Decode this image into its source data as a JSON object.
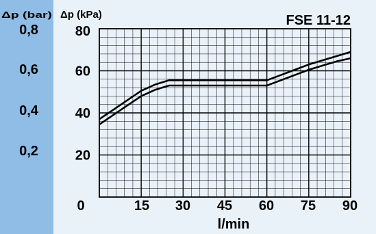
{
  "chart_data": {
    "type": "line",
    "title": "FSE 11-12",
    "xlabel": "l/min",
    "ylabel": "Δp (kPa)",
    "ylabel_secondary": "Δp (bar)",
    "xlim": [
      0,
      90
    ],
    "ylim": [
      0,
      80
    ],
    "x_ticks": [
      "0",
      "15",
      "30",
      "45",
      "60",
      "75",
      "90"
    ],
    "y_ticks": [
      "20",
      "40",
      "60",
      "80"
    ],
    "y2_ticks": [
      "0,2",
      "0,4",
      "0,6",
      "0,8"
    ],
    "grid": true,
    "series": [
      {
        "x": [
          0,
          5,
          10,
          15,
          20,
          25,
          30,
          35,
          40,
          45,
          50,
          55,
          60,
          65,
          70,
          75,
          80,
          85,
          90
        ],
        "y": [
          37,
          41.5,
          46,
          50.5,
          53.5,
          55.5,
          55.5,
          55.5,
          55.5,
          55.5,
          55.5,
          55.5,
          55.5,
          58,
          60.5,
          63,
          65,
          67,
          69
        ]
      },
      {
        "x": [
          0,
          5,
          10,
          15,
          20,
          25,
          30,
          35,
          40,
          45,
          50,
          55,
          60,
          65,
          70,
          75,
          80,
          85,
          90
        ],
        "y": [
          34.5,
          39,
          43.5,
          48,
          51,
          53,
          53,
          53,
          53,
          53,
          53,
          53,
          53,
          55.5,
          58,
          60.5,
          62.5,
          64.5,
          66
        ]
      }
    ]
  },
  "colors": {
    "band": "#8fbde6",
    "background": "#eaf2f9",
    "grid": "#000000",
    "line": "#000000"
  }
}
